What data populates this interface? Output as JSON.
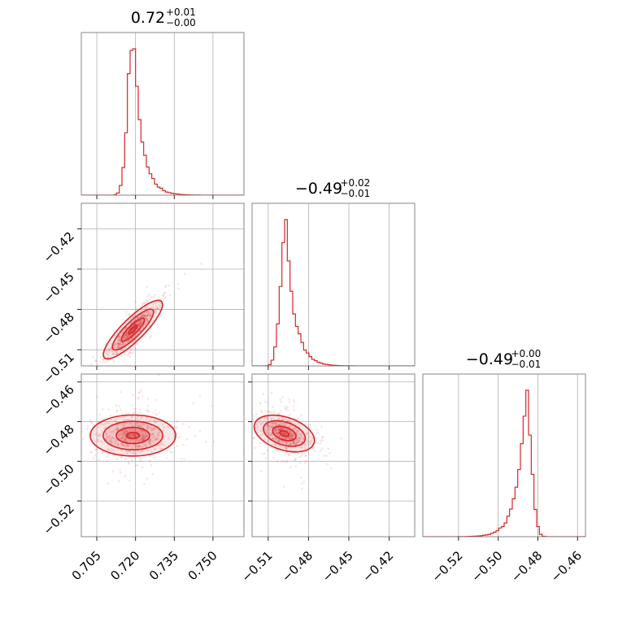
{
  "chart_data": {
    "type": "corner",
    "color": "#d62728",
    "parameters": [
      {
        "index": 0,
        "title": {
          "median": "0.72",
          "plus": "+0.01",
          "minus": "−0.00"
        },
        "range": [
          0.699,
          0.762
        ],
        "ticks": [
          0.705,
          0.72,
          0.735,
          0.75
        ],
        "tick_labels": [
          "0.705",
          "0.720",
          "0.735",
          "0.750"
        ],
        "hist_peak": 0.719,
        "hist_skew": "right"
      },
      {
        "index": 1,
        "title": {
          "median": "−0.49",
          "plus": "+0.02",
          "minus": "−0.01"
        },
        "range": [
          -0.522,
          -0.401
        ],
        "ticks": [
          -0.51,
          -0.48,
          -0.45,
          -0.42
        ],
        "tick_labels": [
          "−0.51",
          "−0.48",
          "−0.45",
          "−0.42"
        ],
        "hist_peak": -0.497,
        "hist_skew": "right"
      },
      {
        "index": 2,
        "title": {
          "median": "−0.49",
          "plus": "+0.00",
          "minus": "−0.01"
        },
        "range": [
          -0.538,
          -0.456
        ],
        "ticks": [
          -0.52,
          -0.5,
          -0.48,
          -0.46
        ],
        "tick_labels": [
          "−0.52",
          "−0.50",
          "−0.48",
          "−0.46"
        ],
        "hist_peak": -0.486,
        "hist_skew": "left"
      }
    ],
    "pairs": [
      {
        "x": 0,
        "y": 1,
        "center": [
          0.719,
          -0.495
        ],
        "slope": 1.9,
        "spread": [
          0.004,
          0.004
        ]
      },
      {
        "x": 0,
        "y": 2,
        "center": [
          0.719,
          -0.487
        ],
        "slope": 0,
        "spread": [
          0.006,
          0.005
        ]
      },
      {
        "x": 1,
        "y": 2,
        "center": [
          -0.498,
          -0.486
        ],
        "slope": -0.22,
        "spread": [
          0.008,
          0.004
        ]
      }
    ],
    "grid": true,
    "legend": "none"
  }
}
